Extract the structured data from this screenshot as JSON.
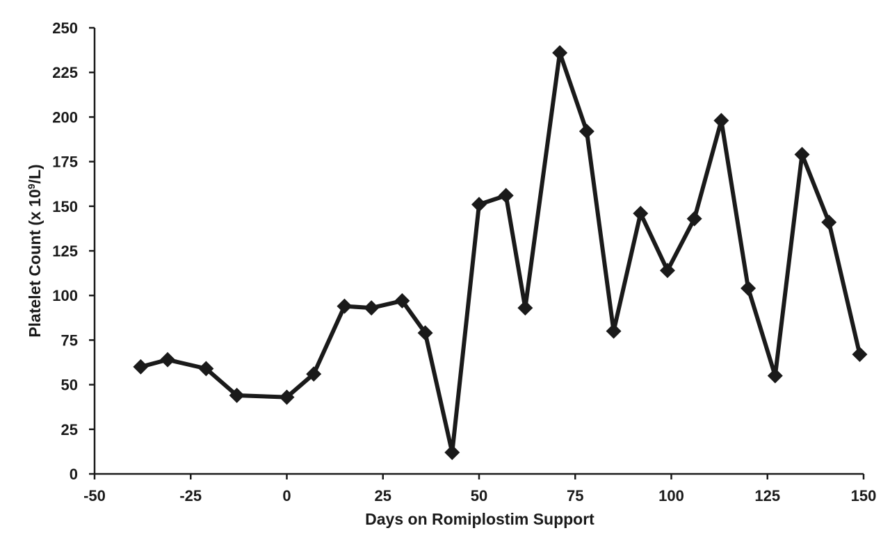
{
  "chart_data": {
    "type": "line",
    "title": "",
    "xlabel": "Days on Romiplostim Support",
    "ylabel_main": "Platelet Count (x 10",
    "ylabel_sup": "9",
    "ylabel_tail": "/L)",
    "xlim": [
      -50,
      150
    ],
    "ylim": [
      0,
      250
    ],
    "x_ticks": [
      -50,
      -25,
      0,
      25,
      50,
      75,
      100,
      125,
      150
    ],
    "y_ticks": [
      0,
      25,
      50,
      75,
      100,
      125,
      150,
      175,
      200,
      225,
      250
    ],
    "grid": false,
    "legend": "none",
    "line_color": "#1a1a1a",
    "marker": "diamond",
    "series": [
      {
        "x": [
          -38,
          -31,
          -21,
          -13,
          0,
          7,
          15,
          22,
          30,
          36,
          43,
          50,
          57,
          62,
          71,
          78,
          85,
          92,
          99,
          106,
          113,
          120,
          127,
          134,
          141,
          149
        ],
        "y": [
          60,
          64,
          59,
          44,
          43,
          56,
          94,
          93,
          97,
          79,
          12,
          151,
          156,
          93,
          236,
          192,
          80,
          146,
          114,
          143,
          198,
          104,
          55,
          179,
          141,
          67
        ]
      }
    ]
  }
}
